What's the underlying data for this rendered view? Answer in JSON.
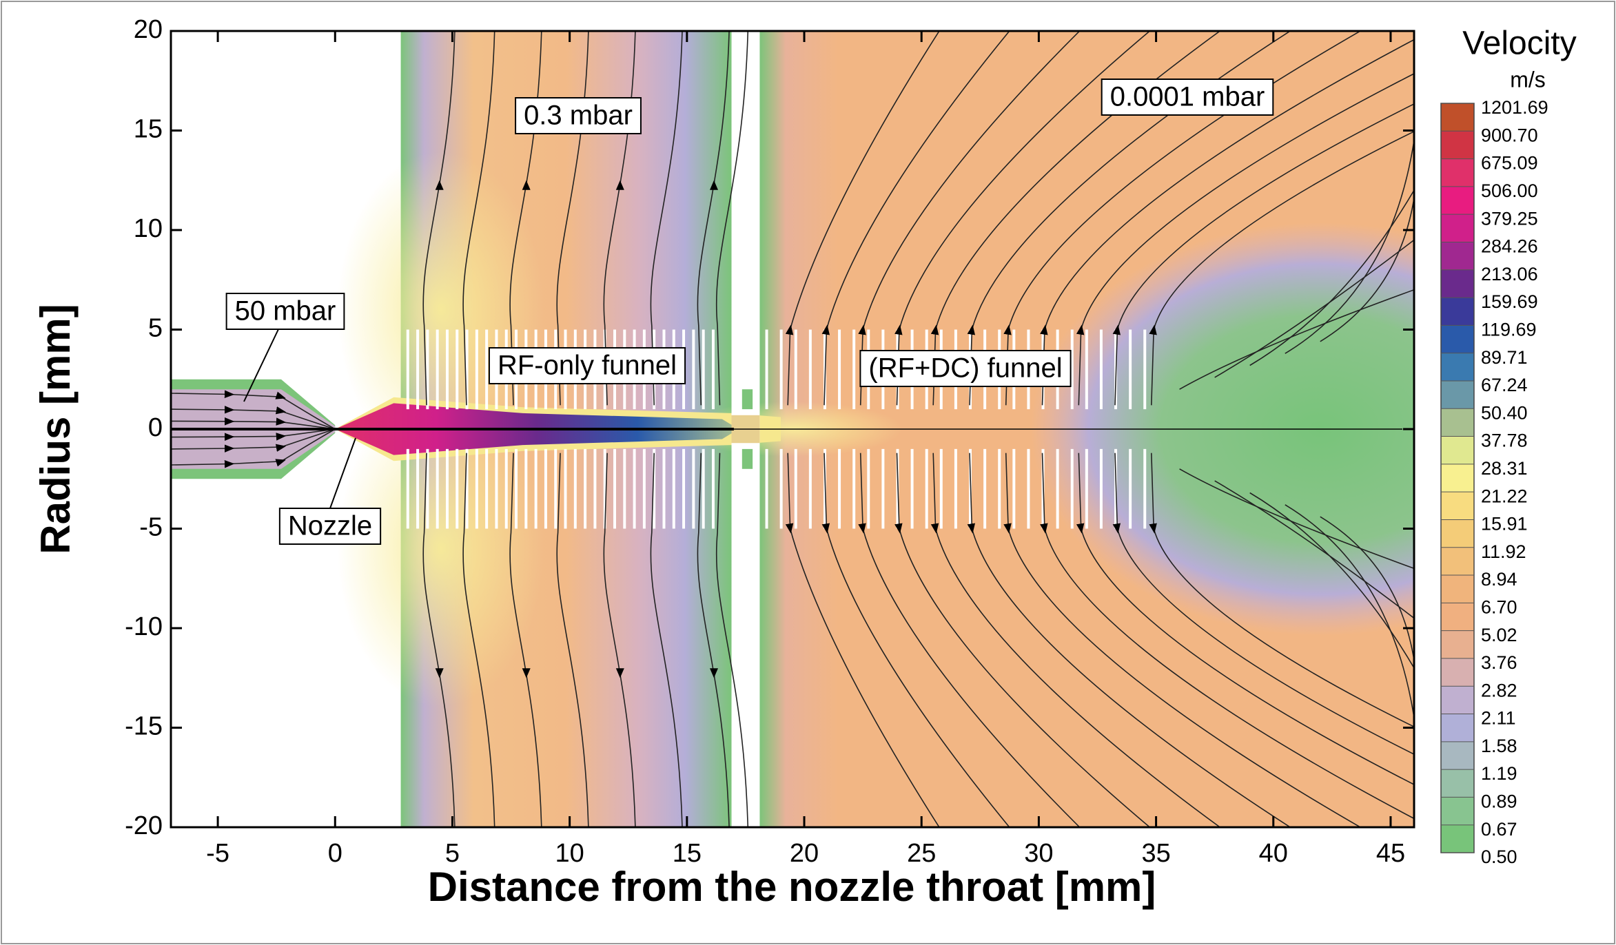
{
  "chart_data": {
    "type": "contour",
    "xlabel": "Distance from the nozzle throat  [mm]",
    "ylabel": "Radius  [mm]",
    "xlim": [
      -7,
      46
    ],
    "ylim": [
      -20,
      20
    ],
    "xticks": [
      -5,
      0,
      5,
      10,
      15,
      20,
      25,
      30,
      35,
      40,
      45
    ],
    "yticks": [
      -20,
      -15,
      -10,
      -5,
      0,
      5,
      10,
      15,
      20
    ],
    "colorbar": {
      "title": "Velocity",
      "unit": "m/s",
      "levels": [
        1201.69,
        {
          "value": 900.7,
          "label": "900.70"
        },
        675.09,
        {
          "value": 506,
          "label": "506.00"
        },
        379.25,
        284.26,
        213.06,
        159.69,
        119.69,
        89.71,
        67.24,
        {
          "value": 50.4,
          "label": "50.40"
        },
        37.78,
        28.31,
        21.22,
        15.91,
        11.92,
        8.94,
        {
          "value": 6.7,
          "label": "6.70"
        },
        5.02,
        3.76,
        2.82,
        2.11,
        1.58,
        1.19,
        0.89,
        0.67,
        {
          "value": 0.5,
          "label": "0.50"
        }
      ],
      "colors": [
        "#c0502a",
        "#d03444",
        "#e0306a",
        "#e81c80",
        "#d0208a",
        "#a02890",
        "#6a2a8c",
        "#3a3a9a",
        "#2a5aaa",
        "#3a7ab0",
        "#6a98a8",
        "#a8c090",
        "#e0e890",
        "#f8f090",
        "#f8dc80",
        "#f4cc78",
        "#f2c07a",
        "#f0b47c",
        "#f0b080",
        "#e8b090",
        "#d8b0b0",
        "#c0b0d0",
        "#b0b0d8",
        "#a8b8c0",
        "#98c0a8",
        "#88c490",
        "#78c47a"
      ]
    },
    "annotations": [
      "50 mbar",
      "0.3 mbar",
      "0.0001 mbar",
      "RF-only funnel",
      "(RF+DC) funnel",
      "Nozzle"
    ]
  }
}
